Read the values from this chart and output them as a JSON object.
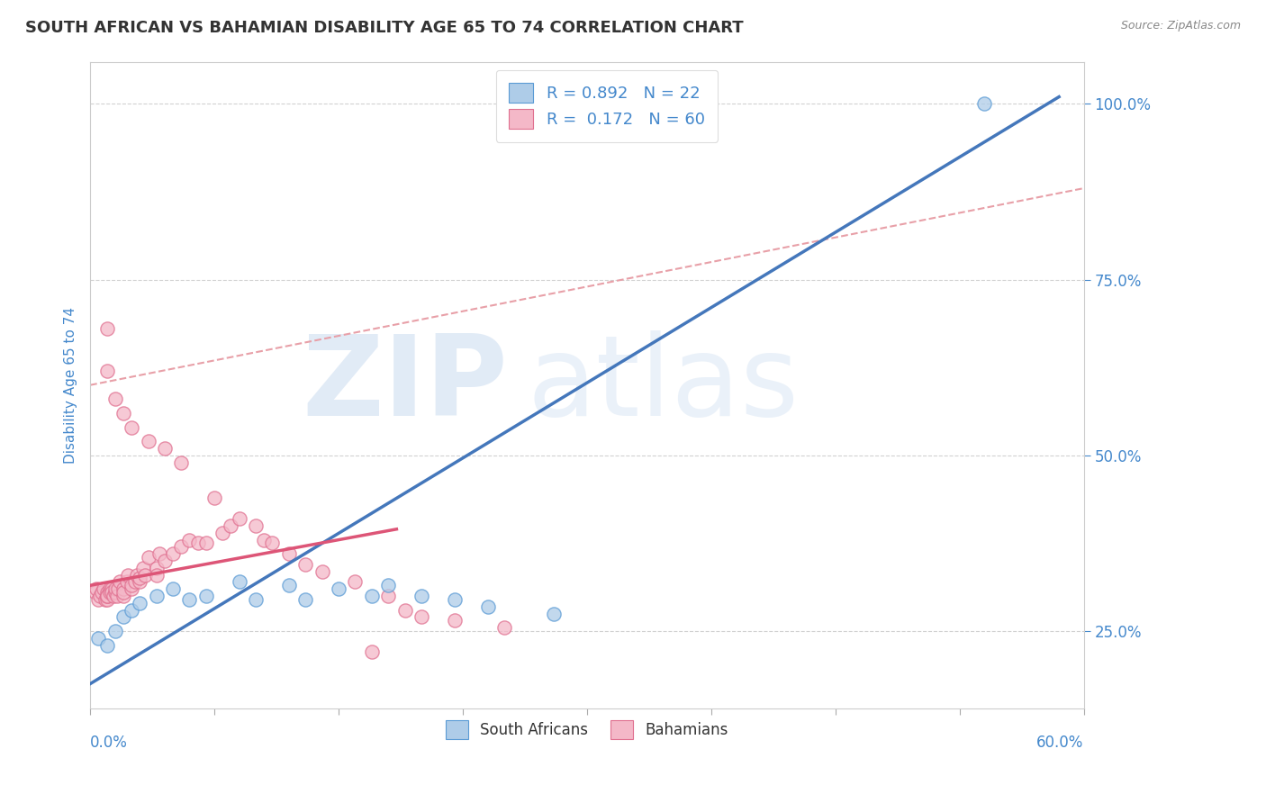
{
  "title": "SOUTH AFRICAN VS BAHAMIAN DISABILITY AGE 65 TO 74 CORRELATION CHART",
  "source": "Source: ZipAtlas.com",
  "xlabel_bottom_left": "0.0%",
  "xlabel_bottom_right": "60.0%",
  "ylabel": "Disability Age 65 to 74",
  "legend1_label": "R = 0.892   N = 22",
  "legend2_label": "R =  0.172   N = 60",
  "watermark_zip": "ZIP",
  "watermark_atlas": "atlas",
  "xlim": [
    0.0,
    0.6
  ],
  "ylim": [
    0.14,
    1.06
  ],
  "yticks": [
    0.25,
    0.5,
    0.75,
    1.0
  ],
  "ytick_labels": [
    "25.0%",
    "50.0%",
    "75.0%",
    "100.0%"
  ],
  "color_blue_fill": "#aecce8",
  "color_blue_edge": "#5b9bd5",
  "color_pink_fill": "#f4b8c8",
  "color_pink_edge": "#e07090",
  "color_line_blue": "#4477bb",
  "color_line_pink": "#dd5577",
  "color_dashed": "#e8a0a8",
  "color_title": "#333333",
  "color_axis_label": "#4488cc",
  "background_color": "#ffffff",
  "title_fontsize": 13,
  "axis_label_fontsize": 11,
  "tick_fontsize": 12,
  "blue_line_x0": 0.0,
  "blue_line_y0": 0.175,
  "blue_line_x1": 0.585,
  "blue_line_y1": 1.01,
  "pink_line_x0": 0.0,
  "pink_line_y0": 0.315,
  "pink_line_x1": 0.185,
  "pink_line_y1": 0.395,
  "dashed_line_x0": 0.0,
  "dashed_line_y0": 0.6,
  "dashed_line_x1": 0.6,
  "dashed_line_y1": 0.88,
  "sa_x": [
    0.005,
    0.01,
    0.015,
    0.02,
    0.025,
    0.03,
    0.04,
    0.05,
    0.06,
    0.07,
    0.09,
    0.1,
    0.12,
    0.13,
    0.15,
    0.17,
    0.18,
    0.2,
    0.22,
    0.24,
    0.28,
    0.54
  ],
  "sa_y": [
    0.24,
    0.23,
    0.25,
    0.27,
    0.28,
    0.29,
    0.3,
    0.31,
    0.295,
    0.3,
    0.32,
    0.295,
    0.315,
    0.295,
    0.31,
    0.3,
    0.315,
    0.3,
    0.295,
    0.285,
    0.275,
    1.0
  ],
  "bah_x": [
    0.003,
    0.004,
    0.005,
    0.006,
    0.007,
    0.008,
    0.009,
    0.01,
    0.01,
    0.01,
    0.01,
    0.01,
    0.012,
    0.012,
    0.013,
    0.013,
    0.014,
    0.015,
    0.015,
    0.016,
    0.017,
    0.018,
    0.02,
    0.02,
    0.02,
    0.022,
    0.023,
    0.025,
    0.025,
    0.027,
    0.028,
    0.03,
    0.03,
    0.032,
    0.033,
    0.035,
    0.04,
    0.04,
    0.042,
    0.045,
    0.05,
    0.055,
    0.06,
    0.065,
    0.07,
    0.08,
    0.085,
    0.09,
    0.1,
    0.105,
    0.11,
    0.12,
    0.13,
    0.14,
    0.16,
    0.18,
    0.19,
    0.2,
    0.22,
    0.25
  ],
  "bah_y": [
    0.305,
    0.31,
    0.295,
    0.3,
    0.305,
    0.31,
    0.295,
    0.3,
    0.305,
    0.295,
    0.3,
    0.3,
    0.31,
    0.305,
    0.31,
    0.305,
    0.3,
    0.305,
    0.31,
    0.3,
    0.31,
    0.32,
    0.3,
    0.31,
    0.305,
    0.32,
    0.33,
    0.31,
    0.315,
    0.32,
    0.33,
    0.32,
    0.325,
    0.34,
    0.33,
    0.355,
    0.34,
    0.33,
    0.36,
    0.35,
    0.36,
    0.37,
    0.38,
    0.375,
    0.375,
    0.39,
    0.4,
    0.41,
    0.4,
    0.38,
    0.375,
    0.36,
    0.345,
    0.335,
    0.32,
    0.3,
    0.28,
    0.27,
    0.265,
    0.255
  ],
  "bah_outlier_x": [
    0.01,
    0.01,
    0.015,
    0.02,
    0.025,
    0.035,
    0.045,
    0.055,
    0.075,
    0.17
  ],
  "bah_outlier_y": [
    0.62,
    0.68,
    0.58,
    0.56,
    0.54,
    0.52,
    0.51,
    0.49,
    0.44,
    0.22
  ]
}
